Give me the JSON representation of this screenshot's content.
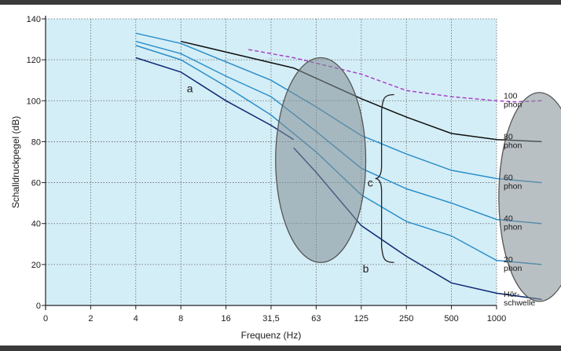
{
  "chart_data": {
    "type": "line",
    "xlabel": "Frequenz (Hz)",
    "ylabel": "Schalldruckpegel (dB)",
    "ylim": [
      0,
      140
    ],
    "yticks": [
      0,
      20,
      40,
      60,
      80,
      100,
      120,
      140
    ],
    "xtick_labels": [
      "0",
      "2",
      "4",
      "8",
      "16",
      "31,5",
      "63",
      "125",
      "250",
      "500",
      "1000"
    ],
    "grid": true,
    "background_color": "#d4eef7",
    "series": [
      {
        "name": "100 phon",
        "color": "#a642c9",
        "dashed": true,
        "points": [
          [
            4.5,
            125
          ],
          [
            5.5,
            121
          ],
          [
            7,
            113
          ],
          [
            8,
            105
          ],
          [
            9,
            102
          ],
          [
            10,
            100
          ],
          [
            10.4,
            99.5
          ],
          [
            11,
            100
          ]
        ]
      },
      {
        "name": "80 phon",
        "color": "#111111",
        "points": [
          [
            3,
            129
          ],
          [
            5.5,
            116
          ],
          [
            7,
            101
          ],
          [
            8,
            92
          ],
          [
            9,
            84
          ],
          [
            10,
            81
          ],
          [
            11,
            80
          ]
        ]
      },
      {
        "name": "60 phon",
        "color": "#2c8fc9",
        "points": [
          [
            2,
            133
          ],
          [
            3,
            128
          ],
          [
            5,
            110
          ],
          [
            6,
            97
          ],
          [
            7,
            83
          ],
          [
            8,
            74
          ],
          [
            9,
            66
          ],
          [
            10,
            62
          ],
          [
            11,
            60
          ]
        ]
      },
      {
        "name": "40 phon",
        "color": "#2c8fc9",
        "points": [
          [
            2,
            129
          ],
          [
            3,
            123
          ],
          [
            4,
            112
          ],
          [
            5,
            102
          ],
          [
            6,
            85
          ],
          [
            7,
            67
          ],
          [
            8,
            57
          ],
          [
            9,
            50
          ],
          [
            10,
            42
          ],
          [
            11,
            40
          ]
        ]
      },
      {
        "name": "20 phon",
        "color": "#2c8fc9",
        "points": [
          [
            2,
            127
          ],
          [
            3,
            120
          ],
          [
            4,
            107
          ],
          [
            5,
            93
          ],
          [
            6,
            75
          ],
          [
            7,
            54
          ],
          [
            8,
            41
          ],
          [
            9,
            34
          ],
          [
            10,
            22
          ],
          [
            11,
            20
          ]
        ]
      },
      {
        "name": "Hör-schwelle",
        "color": "#0d2a73",
        "segments": [
          [
            [
              2,
              121
            ],
            [
              3,
              114
            ],
            [
              4,
              100
            ],
            [
              5,
              88
            ],
            [
              5.5,
              81
            ]
          ],
          [
            [
              5.5,
              77
            ],
            [
              6,
              65
            ],
            [
              7,
              39
            ],
            [
              8,
              24
            ],
            [
              9,
              11
            ],
            [
              10,
              6
            ],
            [
              11,
              3
            ]
          ]
        ]
      }
    ],
    "curve_labels": [
      {
        "lines": [
          "100",
          "phon"
        ],
        "y": 100
      },
      {
        "lines": [
          "80",
          "phon"
        ],
        "y": 80
      },
      {
        "lines": [
          "60",
          "phon"
        ],
        "y": 60
      },
      {
        "lines": [
          "40",
          "phon"
        ],
        "y": 40
      },
      {
        "lines": [
          "20",
          "phon"
        ],
        "y": 20
      },
      {
        "lines": [
          "Hör-",
          "schwelle"
        ],
        "y": 3
      }
    ],
    "annotations": [
      {
        "text": "a",
        "x": 3.2,
        "y": 106
      },
      {
        "text": "b",
        "x": 7.1,
        "y": 18
      },
      {
        "text": "c",
        "x": 7.2,
        "y": 60
      }
    ],
    "brace": {
      "x": 7.45,
      "y_top": 103,
      "y_bottom": 21
    },
    "ellipses": [
      {
        "cx": 6.1,
        "cy": 71,
        "rx": 1.0,
        "ry": 50
      },
      {
        "cx": 10.95,
        "cy": 53,
        "rx": 0.9,
        "ry": 51
      }
    ]
  }
}
